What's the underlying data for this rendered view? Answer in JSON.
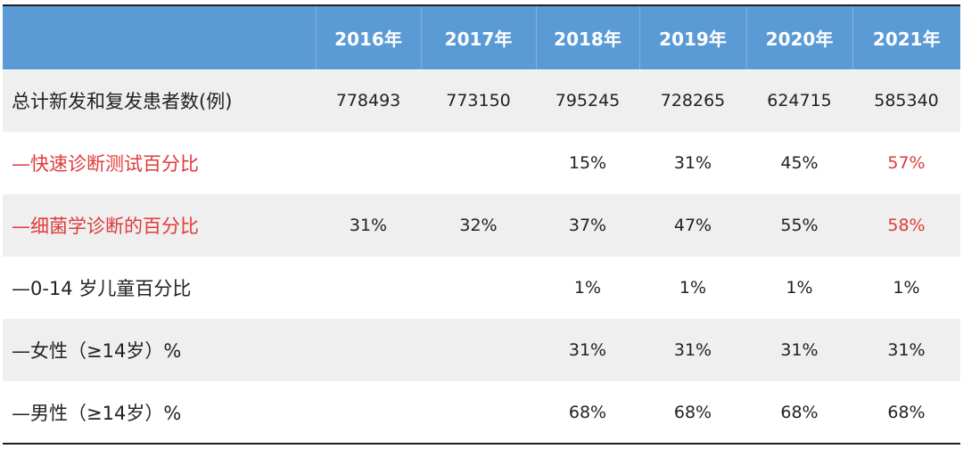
{
  "table": {
    "columns": [
      "",
      "2016年",
      "2017年",
      "2018年",
      "2019年",
      "2020年",
      "2021年"
    ],
    "rows": [
      {
        "label": "总计新发和复发患者数(例)",
        "values": [
          "778493",
          "773150",
          "795245",
          "728265",
          "624715",
          "585340"
        ],
        "label_color": "",
        "highlight_last": false
      },
      {
        "label": "—快速诊断测试百分比",
        "values": [
          "",
          "",
          "15%",
          "31%",
          "45%",
          "57%"
        ],
        "label_color": "#e03b3b",
        "highlight_last": true
      },
      {
        "label": "—细菌学诊断的百分比",
        "values": [
          "31%",
          "32%",
          "37%",
          "47%",
          "55%",
          "58%"
        ],
        "label_color": "#e03b3b",
        "highlight_last": true
      },
      {
        "label": "—0-14 岁儿童百分比",
        "values": [
          "",
          "",
          "1%",
          "1%",
          "1%",
          "1%"
        ],
        "label_color": "",
        "highlight_last": false
      },
      {
        "label": "—女性（≥14岁）%",
        "values": [
          "",
          "",
          "31%",
          "31%",
          "31%",
          "31%"
        ],
        "label_color": "",
        "highlight_last": false
      },
      {
        "label": "—男性（≥14岁）%",
        "values": [
          "",
          "",
          "68%",
          "68%",
          "68%",
          "68%"
        ],
        "label_color": "",
        "highlight_last": false
      }
    ]
  },
  "colors": {
    "header_bg": "#5b9bd5",
    "header_text": "#ffffff",
    "shaded_row": "#efefef",
    "highlight": "#e03b3b"
  }
}
